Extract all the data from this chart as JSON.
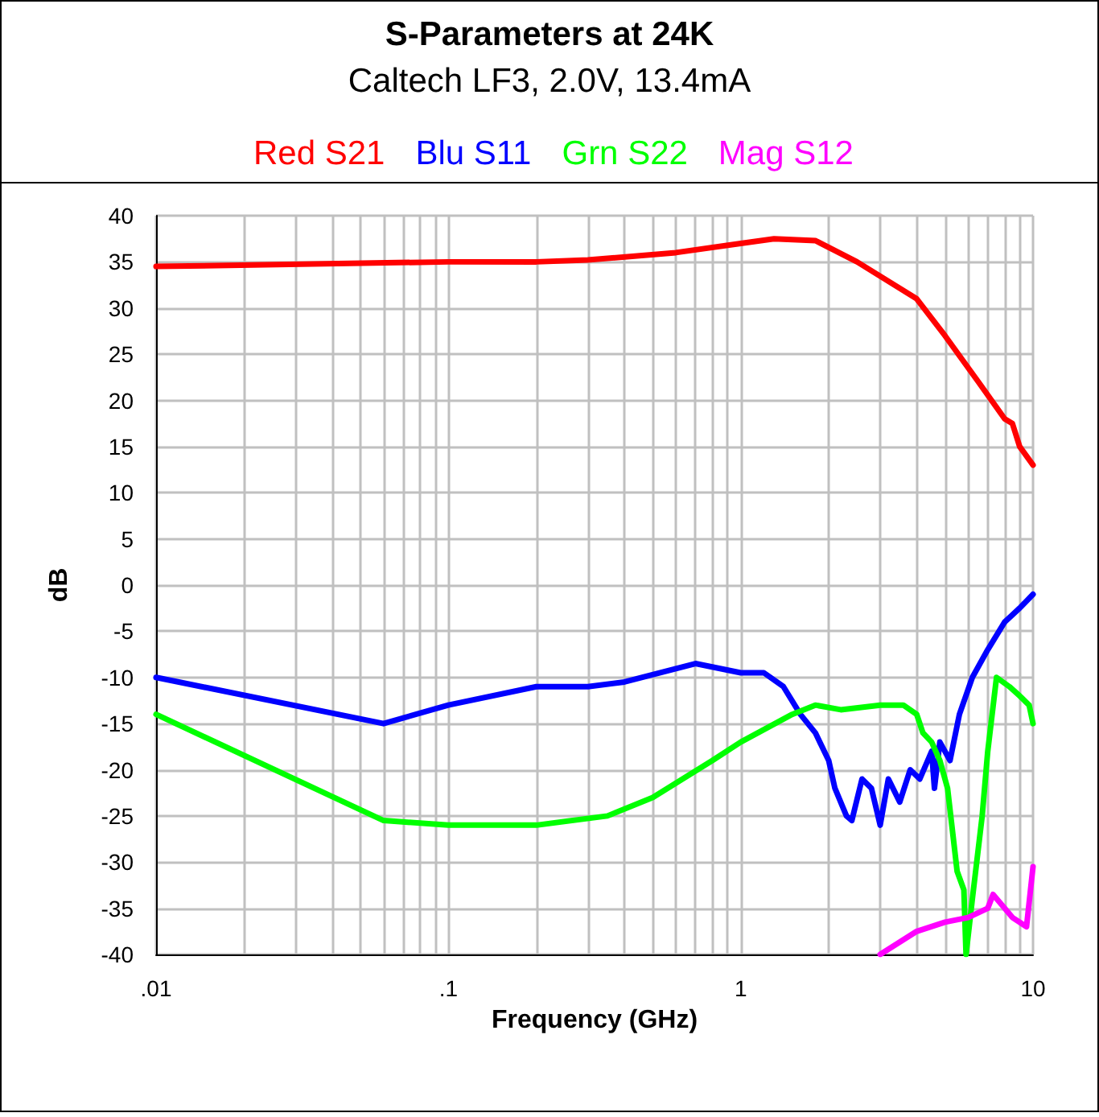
{
  "chart_data": {
    "type": "line",
    "title": "S-Parameters at 24K",
    "subtitle": "Caltech LF3, 2.0V, 13.4mA",
    "xlabel": "Frequency (GHz)",
    "ylabel": "dB",
    "log": "x",
    "grid": true,
    "legend": "top",
    "marker": "none",
    "line_style": "solid",
    "xlim": [
      0.01,
      10
    ],
    "xticks": [
      {
        "value": 0.01,
        "label": ".01"
      },
      {
        "value": 0.1,
        "label": ".1"
      },
      1,
      10
    ],
    "ylim": [
      -40,
      40
    ],
    "yticks": [
      -40,
      -35,
      -30,
      -25,
      -20,
      -15,
      -10,
      -5,
      0,
      5,
      10,
      15,
      20,
      25,
      30,
      35,
      40
    ],
    "series": [
      {
        "name": "Red S21",
        "color": "#ff0000",
        "x": [
          0.01,
          0.1,
          0.2,
          0.3,
          0.6,
          1,
          1.3,
          1.8,
          2.5,
          4,
          5,
          6.5,
          8,
          8.5,
          9,
          10
        ],
        "values": [
          34.5,
          35,
          35,
          35.2,
          36,
          37,
          37.5,
          37.3,
          35,
          31,
          27,
          22,
          18,
          17.5,
          15,
          13
        ]
      },
      {
        "name": "Blu S11",
        "color": "#0000ff",
        "x": [
          0.01,
          0.06,
          0.1,
          0.2,
          0.3,
          0.4,
          0.7,
          1,
          1.2,
          1.4,
          1.6,
          1.8,
          2,
          2.1,
          2.3,
          2.4,
          2.6,
          2.8,
          3,
          3.2,
          3.5,
          3.8,
          4.1,
          4.5,
          4.6,
          4.8,
          5.2,
          5.6,
          6.2,
          7,
          8,
          9,
          10
        ],
        "values": [
          -10,
          -15,
          -13,
          -11,
          -11,
          -10.5,
          -8.5,
          -9.5,
          -9.5,
          -11,
          -14,
          -16,
          -19,
          -22,
          -25,
          -25.5,
          -21,
          -22,
          -26,
          -21,
          -23.5,
          -20,
          -21,
          -18,
          -22,
          -17,
          -19,
          -14,
          -10,
          -7,
          -4,
          -2.5,
          -1
        ]
      },
      {
        "name": "Grn S22",
        "color": "#00ff00",
        "x": [
          0.01,
          0.06,
          0.1,
          0.2,
          0.35,
          0.5,
          0.8,
          1,
          1.5,
          1.8,
          2.2,
          3,
          3.6,
          4,
          4.2,
          4.5,
          4.8,
          5.1,
          5.5,
          5.8,
          5.9,
          6.2,
          6.7,
          7,
          7.5,
          8.3,
          9,
          9.7,
          10
        ],
        "values": [
          -14,
          -25.5,
          -26,
          -26,
          -25,
          -23,
          -19,
          -17,
          -14,
          -13,
          -13.5,
          -13,
          -13,
          -14,
          -16,
          -17,
          -19,
          -22,
          -31,
          -33,
          -40,
          -34,
          -25,
          -18,
          -10,
          -11,
          -12,
          -13,
          -15
        ]
      },
      {
        "name": "Mag S12",
        "color": "#ff00ff",
        "x": [
          3,
          4,
          5,
          6,
          7,
          7.3,
          8.5,
          9.5,
          10
        ],
        "values": [
          -40,
          -37.5,
          -36.5,
          -36,
          -35,
          -33.5,
          -36,
          -37,
          -30.5
        ]
      }
    ]
  }
}
